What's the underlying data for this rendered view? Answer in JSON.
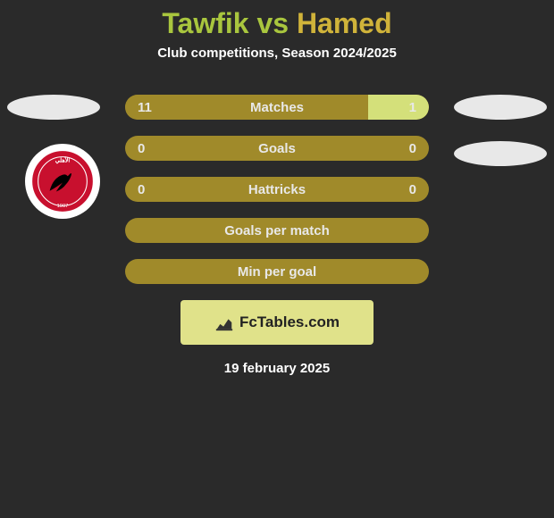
{
  "title": {
    "player1": "Tawfik",
    "vs": "vs",
    "player2": "Hamed",
    "color1": "#a9c63e",
    "color2": "#d0b33a"
  },
  "subtitle": "Club competitions, Season 2024/2025",
  "accent": "#a08a2a",
  "light_fill": "#d4e07a",
  "bars": [
    {
      "label": "Matches",
      "left": "11",
      "right": "1",
      "left_pct": 80,
      "right_pct": 20,
      "show_vals": true
    },
    {
      "label": "Goals",
      "left": "0",
      "right": "0",
      "left_pct": 0,
      "right_pct": 0,
      "show_vals": true
    },
    {
      "label": "Hattricks",
      "left": "0",
      "right": "0",
      "left_pct": 0,
      "right_pct": 0,
      "show_vals": true
    },
    {
      "label": "Goals per match",
      "left": "",
      "right": "",
      "left_pct": 0,
      "right_pct": 0,
      "show_vals": false
    },
    {
      "label": "Min per goal",
      "left": "",
      "right": "",
      "left_pct": 0,
      "right_pct": 0,
      "show_vals": false
    }
  ],
  "logo": {
    "text": "FcTables.com",
    "bg": "#e0e28a"
  },
  "date": "19 february 2025",
  "club_badge": {
    "bg": "#c8102e",
    "bird": "#000000",
    "ring": "#ffffff"
  }
}
